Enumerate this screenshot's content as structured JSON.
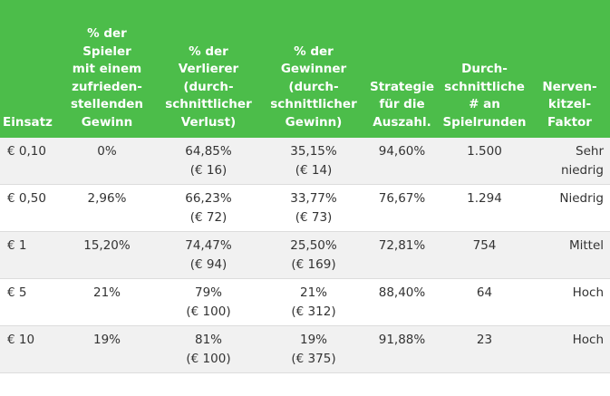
{
  "table": {
    "headers": [
      "Einsatz",
      "% der\nSpieler\nmit einem\nzufrieden-\nstellenden\nGewinn",
      "% der\nVerlierer\n(durch-\nschnittlicher\nVerlust)",
      "% der\nGewinner\n(durch-\nschnittlicher\nGewinn)",
      "Strategie\nfür die\nAuszahl.",
      "Durch-\nschnittliche\n# an\nSpielrunden",
      "Nerven-\nkitzel-\nFaktor"
    ],
    "rows": [
      [
        "€ 0,10",
        "0%",
        "64,85%\n(€ 16)",
        "35,15%\n(€ 14)",
        "94,60%",
        "1.500",
        "Sehr\nniedrig"
      ],
      [
        "€ 0,50",
        "2,96%",
        "66,23%\n(€ 72)",
        "33,77%\n(€ 73)",
        "76,67%",
        "1.294",
        "Niedrig"
      ],
      [
        "€ 1",
        "15,20%",
        "74,47%\n(€ 94)",
        "25,50%\n(€ 169)",
        "72,81%",
        "754",
        "Mittel"
      ],
      [
        "€ 5",
        "21%",
        "79%\n(€ 100)",
        "21%\n(€ 312)",
        "88,40%",
        "64",
        "Hoch"
      ],
      [
        "€ 10",
        "19%",
        "81%\n(€ 100)",
        "19%\n(€ 375)",
        "91,88%",
        "23",
        "Hoch"
      ]
    ]
  },
  "colors": {
    "header_bg": "#4cbd4a",
    "header_text": "#ffffff",
    "row_alt_bg": "#f1f1f1",
    "body_text": "#333333"
  }
}
